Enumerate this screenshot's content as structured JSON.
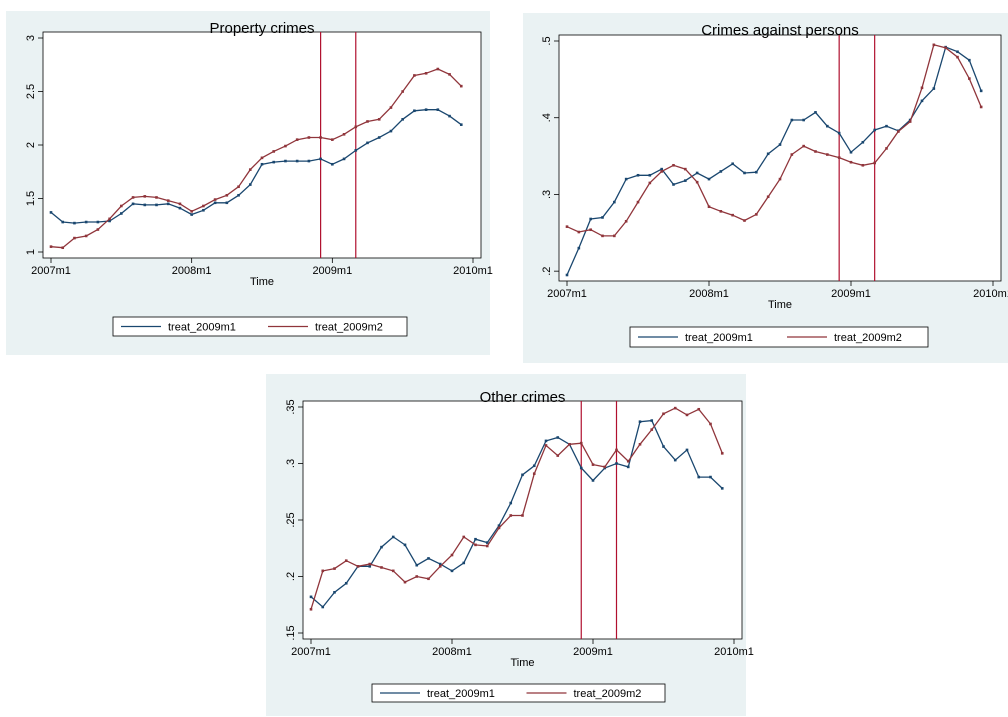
{
  "x_ticks": [
    {
      "label": "2007m1",
      "t": 0
    },
    {
      "label": "2008m1",
      "t": 12
    },
    {
      "label": "2009m1",
      "t": 24
    },
    {
      "label": "2010m1",
      "t": 36
    }
  ],
  "xlabel": "Time",
  "vlines": [
    23,
    26
  ],
  "colors": {
    "treat_2009m1": "#1a476f",
    "treat_2009m2": "#90353b",
    "vline": "#b0102e",
    "panel_bg": "#eaf2f3"
  },
  "legend": [
    "treat_2009m1",
    "treat_2009m2"
  ],
  "chart_data": [
    {
      "type": "line",
      "title": "Property crimes",
      "xlabel": "Time",
      "ylabel": "",
      "ylim": [
        1,
        3
      ],
      "y_ticks": [
        {
          "label": "1",
          "v": 1
        },
        {
          "label": "1.5",
          "v": 1.5
        },
        {
          "label": "2",
          "v": 2
        },
        {
          "label": "2.5",
          "v": 2.5
        },
        {
          "label": "3",
          "v": 3
        }
      ],
      "x": [
        0,
        1,
        2,
        3,
        4,
        5,
        6,
        7,
        8,
        9,
        10,
        11,
        12,
        13,
        14,
        15,
        16,
        17,
        18,
        19,
        20,
        21,
        22,
        23,
        24,
        25,
        26,
        27,
        28,
        29,
        30,
        31,
        32,
        33,
        34,
        35
      ],
      "series": [
        {
          "name": "treat_2009m1",
          "values": [
            1.37,
            1.28,
            1.27,
            1.28,
            1.28,
            1.29,
            1.36,
            1.45,
            1.44,
            1.44,
            1.45,
            1.41,
            1.35,
            1.39,
            1.46,
            1.46,
            1.53,
            1.63,
            1.82,
            1.84,
            1.85,
            1.85,
            1.85,
            1.87,
            1.82,
            1.87,
            1.95,
            2.02,
            2.07,
            2.13,
            2.24,
            2.32,
            2.33,
            2.33,
            2.27,
            2.19
          ]
        },
        {
          "name": "treat_2009m2",
          "values": [
            1.05,
            1.04,
            1.13,
            1.15,
            1.21,
            1.31,
            1.43,
            1.51,
            1.52,
            1.51,
            1.48,
            1.45,
            1.38,
            1.43,
            1.49,
            1.53,
            1.61,
            1.77,
            1.88,
            1.94,
            1.99,
            2.05,
            2.07,
            2.07,
            2.05,
            2.1,
            2.17,
            2.22,
            2.24,
            2.35,
            2.5,
            2.65,
            2.67,
            2.71,
            2.66,
            2.55
          ]
        }
      ]
    },
    {
      "type": "line",
      "title": "Crimes against persons",
      "xlabel": "Time",
      "ylabel": "",
      "ylim": [
        0.195,
        0.5
      ],
      "y_ticks": [
        {
          "label": ".2",
          "v": 0.2
        },
        {
          "label": ".3",
          "v": 0.3
        },
        {
          "label": ".4",
          "v": 0.4
        },
        {
          "label": ".5",
          "v": 0.5
        }
      ],
      "x": [
        0,
        1,
        2,
        3,
        4,
        5,
        6,
        7,
        8,
        9,
        10,
        11,
        12,
        13,
        14,
        15,
        16,
        17,
        18,
        19,
        20,
        21,
        22,
        23,
        24,
        25,
        26,
        27,
        28,
        29,
        30,
        31,
        32,
        33,
        34,
        35
      ],
      "series": [
        {
          "name": "treat_2009m1",
          "values": [
            0.195,
            0.23,
            0.268,
            0.27,
            0.29,
            0.32,
            0.325,
            0.325,
            0.333,
            0.313,
            0.318,
            0.328,
            0.32,
            0.33,
            0.34,
            0.328,
            0.329,
            0.353,
            0.365,
            0.397,
            0.397,
            0.407,
            0.389,
            0.38,
            0.355,
            0.368,
            0.384,
            0.389,
            0.383,
            0.397,
            0.422,
            0.438,
            0.492,
            0.486,
            0.475,
            0.435
          ]
        },
        {
          "name": "treat_2009m2",
          "values": [
            0.258,
            0.251,
            0.254,
            0.246,
            0.246,
            0.265,
            0.29,
            0.315,
            0.33,
            0.338,
            0.333,
            0.316,
            0.284,
            0.278,
            0.273,
            0.266,
            0.274,
            0.297,
            0.32,
            0.352,
            0.363,
            0.356,
            0.352,
            0.348,
            0.342,
            0.338,
            0.341,
            0.36,
            0.382,
            0.395,
            0.439,
            0.495,
            0.491,
            0.479,
            0.451,
            0.414
          ]
        }
      ]
    },
    {
      "type": "line",
      "title": "Other crimes",
      "xlabel": "Time",
      "ylabel": "",
      "ylim": [
        0.15,
        0.35
      ],
      "y_ticks": [
        {
          "label": ".15",
          "v": 0.15
        },
        {
          "label": ".2",
          "v": 0.2
        },
        {
          "label": ".25",
          "v": 0.25
        },
        {
          "label": ".3",
          "v": 0.3
        },
        {
          "label": ".35",
          "v": 0.35
        }
      ],
      "x": [
        0,
        1,
        2,
        3,
        4,
        5,
        6,
        7,
        8,
        9,
        10,
        11,
        12,
        13,
        14,
        15,
        16,
        17,
        18,
        19,
        20,
        21,
        22,
        23,
        24,
        25,
        26,
        27,
        28,
        29,
        30,
        31,
        32,
        33,
        34,
        35
      ],
      "series": [
        {
          "name": "treat_2009m1",
          "values": [
            0.182,
            0.173,
            0.186,
            0.194,
            0.209,
            0.209,
            0.226,
            0.235,
            0.228,
            0.21,
            0.216,
            0.211,
            0.205,
            0.212,
            0.233,
            0.23,
            0.245,
            0.265,
            0.29,
            0.298,
            0.32,
            0.323,
            0.317,
            0.296,
            0.285,
            0.296,
            0.3,
            0.297,
            0.337,
            0.338,
            0.315,
            0.303,
            0.312,
            0.288,
            0.288,
            0.278
          ]
        },
        {
          "name": "treat_2009m2",
          "values": [
            0.171,
            0.205,
            0.207,
            0.214,
            0.209,
            0.211,
            0.208,
            0.205,
            0.195,
            0.2,
            0.198,
            0.209,
            0.219,
            0.235,
            0.228,
            0.227,
            0.243,
            0.254,
            0.254,
            0.291,
            0.316,
            0.307,
            0.317,
            0.318,
            0.299,
            0.297,
            0.312,
            0.302,
            0.317,
            0.33,
            0.344,
            0.349,
            0.343,
            0.348,
            0.335,
            0.309
          ]
        }
      ]
    }
  ]
}
